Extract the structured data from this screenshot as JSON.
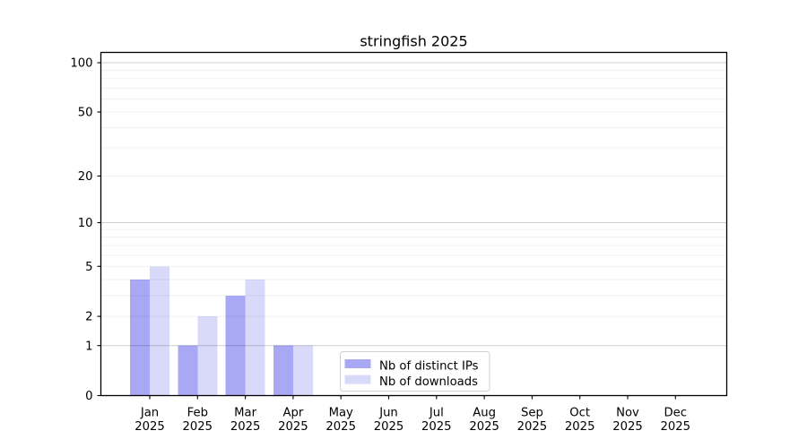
{
  "chart_data": {
    "type": "bar",
    "title": "stringfish 2025",
    "categories": [
      {
        "month": "Jan",
        "year": "2025"
      },
      {
        "month": "Feb",
        "year": "2025"
      },
      {
        "month": "Mar",
        "year": "2025"
      },
      {
        "month": "Apr",
        "year": "2025"
      },
      {
        "month": "May",
        "year": "2025"
      },
      {
        "month": "Jun",
        "year": "2025"
      },
      {
        "month": "Jul",
        "year": "2025"
      },
      {
        "month": "Aug",
        "year": "2025"
      },
      {
        "month": "Sep",
        "year": "2025"
      },
      {
        "month": "Oct",
        "year": "2025"
      },
      {
        "month": "Nov",
        "year": "2025"
      },
      {
        "month": "Dec",
        "year": "2025"
      }
    ],
    "series": [
      {
        "name": "Nb of distinct IPs",
        "color": "#a8a8f5",
        "values": [
          4,
          1,
          3,
          1,
          0,
          0,
          0,
          0,
          0,
          0,
          0,
          0
        ]
      },
      {
        "name": "Nb of downloads",
        "color": "#d9d9f9",
        "values": [
          5,
          2,
          4,
          1,
          0,
          0,
          0,
          0,
          0,
          0,
          0,
          0
        ]
      }
    ],
    "xlabel": "",
    "ylabel": "",
    "yscale": "log1p",
    "ylim": [
      0,
      100
    ],
    "yticks": [
      0,
      1,
      2,
      5,
      10,
      20,
      50,
      100
    ],
    "grid": true,
    "legend_position": "lower center inside"
  },
  "colors": {
    "grid_minor": "#f0f0f0",
    "grid_major": "#cccccc",
    "axis_frame": "#000000",
    "legend_border": "#d0d0d0",
    "background": "#ffffff"
  }
}
